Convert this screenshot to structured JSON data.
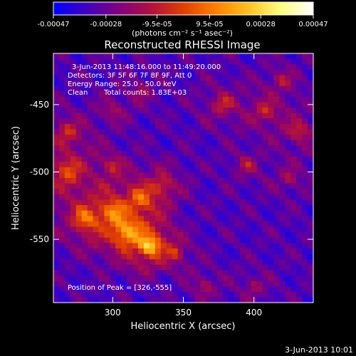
{
  "colorbar": {
    "tick_labels": [
      "-0.00047",
      "-0.00028",
      "-9.5e-05",
      "9.5e-05",
      "0.00028",
      "0.00047"
    ],
    "tick_values": [
      -0.00047,
      -0.00028,
      -9.5e-05,
      9.5e-05,
      0.00028,
      0.00047
    ],
    "range": [
      -0.00047,
      0.00047
    ],
    "unit_label": "(photons cm⁻² s⁻¹ asec⁻²)",
    "colors": [
      "#0000ff",
      "#4000c0",
      "#800080",
      "#b01040",
      "#e04000",
      "#ff8000",
      "#ffc020",
      "#ffff80",
      "#ffffff"
    ]
  },
  "chart_data": {
    "type": "heatmap",
    "title": "Reconstructed RHESSI Image",
    "xlabel": "Heliocentric X (arcsec)",
    "ylabel": "Heliocentric Y (arcsec)",
    "xlim": [
      258,
      442
    ],
    "ylim": [
      -597,
      -412
    ],
    "x_ticks": [
      300,
      350,
      400
    ],
    "y_ticks": [
      -450,
      -500,
      -550
    ],
    "peak": {
      "x": 326,
      "y": -555
    },
    "annotations": {
      "time": "3-Jun-2013 11:48:16.000 to 11:49:20.000",
      "detectors": "Detectors: 3F 5F 6F 7F 8F 9F, Att 0",
      "energy": "Energy Range: 25.0 - 50.0 keV",
      "clean": "Clean",
      "counts": "Total counts: 1.83E+03",
      "peak_label": "Position of Peak = [326,-555]"
    }
  },
  "footer": {
    "timestamp": "3-Jun-2013 10:01"
  }
}
